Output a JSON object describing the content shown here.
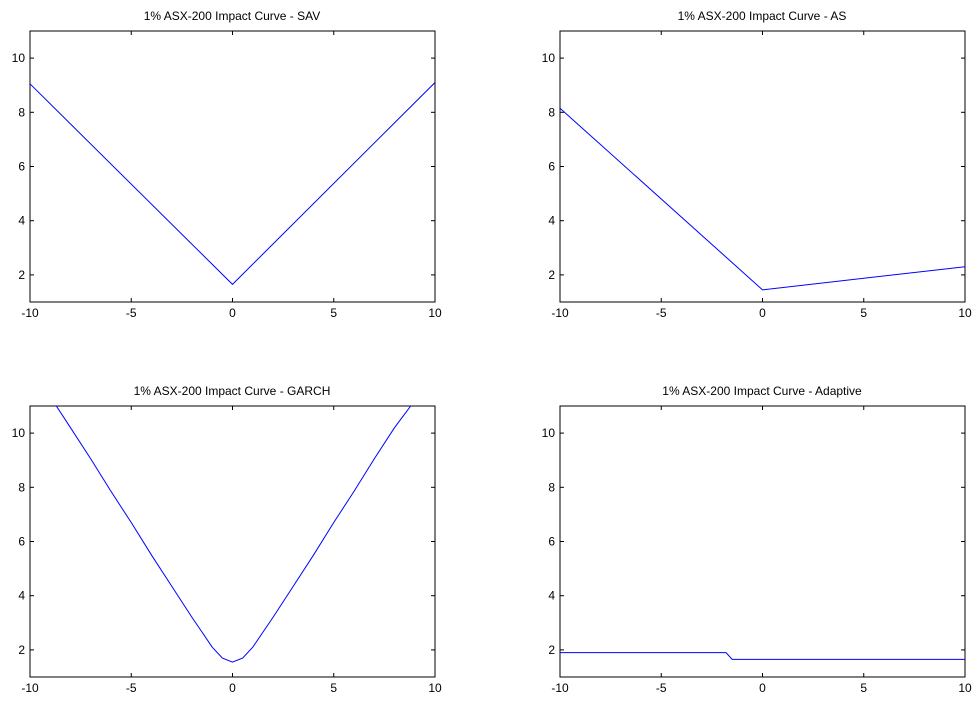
{
  "chart_data": [
    {
      "type": "line",
      "title": "1% ASX-200 Impact Curve - SAV",
      "xlim": [
        -10,
        10
      ],
      "ylim": [
        1,
        11
      ],
      "xticks": [
        "-10",
        "-5",
        "0",
        "5",
        "10"
      ],
      "yticks": [
        "2",
        "4",
        "6",
        "8",
        "10"
      ],
      "series": [
        {
          "color": "#0000ff",
          "x": [
            -10,
            0,
            10
          ],
          "y": [
            9.05,
            1.65,
            9.1
          ]
        }
      ]
    },
    {
      "type": "line",
      "title": "1% ASX-200 Impact Curve - AS",
      "xlim": [
        -10,
        10
      ],
      "ylim": [
        1,
        11
      ],
      "xticks": [
        "-10",
        "-5",
        "0",
        "5",
        "10"
      ],
      "yticks": [
        "2",
        "4",
        "6",
        "8",
        "10"
      ],
      "series": [
        {
          "color": "#0000ff",
          "x": [
            -10,
            0,
            10
          ],
          "y": [
            8.15,
            1.45,
            2.3
          ]
        }
      ]
    },
    {
      "type": "line",
      "title": "1% ASX-200 Impact Curve - GARCH",
      "xlim": [
        -10,
        10
      ],
      "ylim": [
        1,
        11
      ],
      "xticks": [
        "-10",
        "-5",
        "0",
        "5",
        "10"
      ],
      "yticks": [
        "2",
        "4",
        "6",
        "8",
        "10"
      ],
      "series": [
        {
          "color": "#0000ff",
          "x": [
            -8.7,
            -8,
            -7,
            -6,
            -5,
            -4,
            -3,
            -2,
            -1.5,
            -1,
            -0.5,
            0,
            0.5,
            1,
            1.5,
            2,
            3,
            4,
            5,
            6,
            7,
            8,
            8.8
          ],
          "y": [
            11,
            10.2,
            9.05,
            7.85,
            6.7,
            5.5,
            4.35,
            3.2,
            2.65,
            2.1,
            1.7,
            1.55,
            1.7,
            2.1,
            2.65,
            3.2,
            4.35,
            5.5,
            6.7,
            7.85,
            9.05,
            10.2,
            11
          ]
        }
      ]
    },
    {
      "type": "line",
      "title": "1% ASX-200 Impact Curve - Adaptive",
      "xlim": [
        -10,
        10
      ],
      "ylim": [
        1,
        11
      ],
      "xticks": [
        "-10",
        "-5",
        "0",
        "5",
        "10"
      ],
      "yticks": [
        "2",
        "4",
        "6",
        "8",
        "10"
      ],
      "series": [
        {
          "color": "#0000ff",
          "x": [
            -10,
            -1.8,
            -1.5,
            10
          ],
          "y": [
            1.9,
            1.9,
            1.65,
            1.65
          ]
        }
      ]
    }
  ]
}
